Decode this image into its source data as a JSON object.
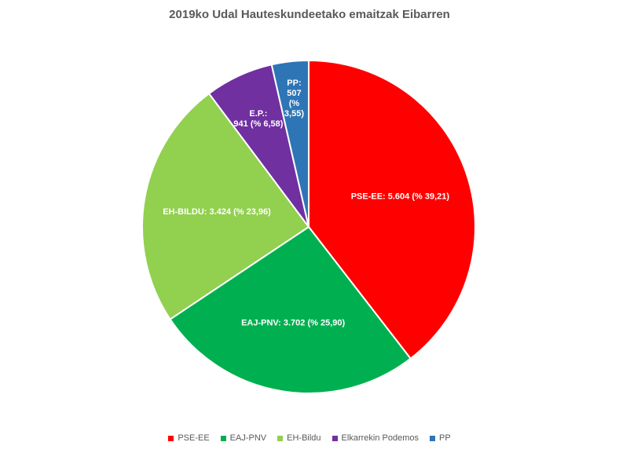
{
  "chart_data": {
    "type": "pie",
    "title": "2019ko Udal Hauteskundeetako emaitzak Eibarren",
    "slices": [
      {
        "name": "PSE-EE",
        "legend": "PSE-EE",
        "value": 5604,
        "percent": 39.21,
        "label_lines": [
          "PSE-EE: 5.604 (% 39,21)"
        ],
        "color": "#ff0000"
      },
      {
        "name": "EAJ-PNV",
        "legend": "EAJ-PNV",
        "value": 3702,
        "percent": 25.9,
        "label_lines": [
          "EAJ-PNV: 3.702 (% 25,90)"
        ],
        "color": "#00b050"
      },
      {
        "name": "EH-BILDU",
        "legend": "EH-Bildu",
        "value": 3424,
        "percent": 23.96,
        "label_lines": [
          "EH-BILDU: 3.424 (% 23,96)"
        ],
        "color": "#92d050"
      },
      {
        "name": "E.P.",
        "legend": "Elkarrekin Podemos",
        "value": 941,
        "percent": 6.58,
        "label_lines": [
          "E.P.:",
          "941 (% 6,58)"
        ],
        "color": "#7030a0"
      },
      {
        "name": "PP",
        "legend": "PP",
        "value": 507,
        "percent": 3.55,
        "label_lines": [
          "PP:",
          "507",
          "(%",
          "3,55)"
        ],
        "color": "#2e75b6"
      }
    ],
    "legend_position": "bottom",
    "start_angle": "12 o'clock",
    "direction": "clockwise"
  }
}
